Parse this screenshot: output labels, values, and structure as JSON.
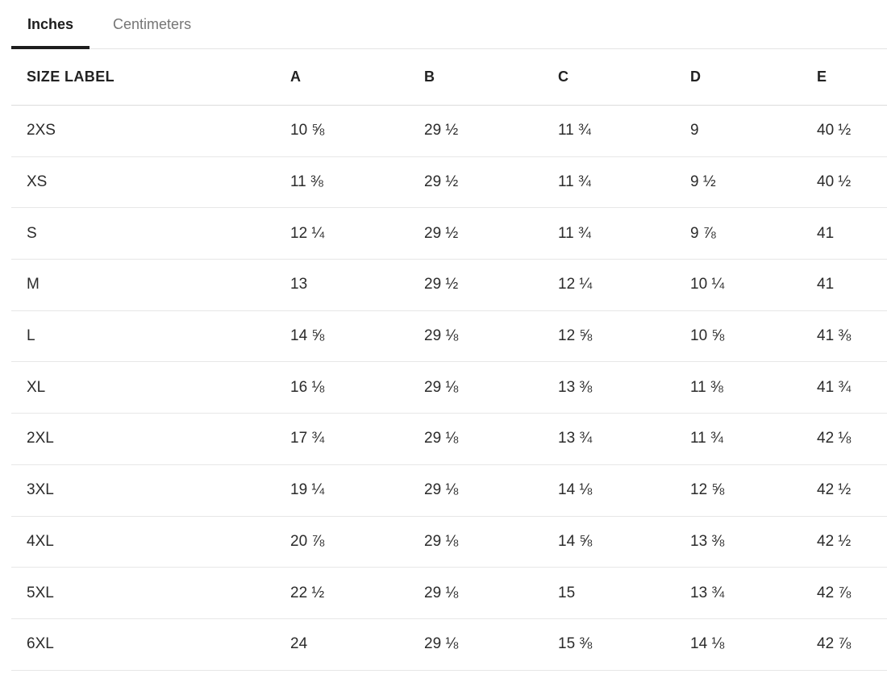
{
  "unit_tabs": [
    {
      "label": "Inches",
      "active": true
    },
    {
      "label": "Centimeters",
      "active": false
    }
  ],
  "size_chart": {
    "unit": "Inches",
    "columns": [
      "SIZE LABEL",
      "A",
      "B",
      "C",
      "D",
      "E"
    ],
    "rows": [
      {
        "size": "2XS",
        "values": [
          "10 ⅝",
          "29 ½",
          "11 ¾",
          "9",
          "40 ½"
        ]
      },
      {
        "size": "XS",
        "values": [
          "11 ⅜",
          "29 ½",
          "11 ¾",
          "9 ½",
          "40 ½"
        ]
      },
      {
        "size": "S",
        "values": [
          "12 ¼",
          "29 ½",
          "11 ¾",
          "9 ⅞",
          "41"
        ]
      },
      {
        "size": "M",
        "values": [
          "13",
          "29 ½",
          "12 ¼",
          "10 ¼",
          "41"
        ]
      },
      {
        "size": "L",
        "values": [
          "14 ⅝",
          "29 ⅛",
          "12 ⅝",
          "10 ⅝",
          "41 ⅜"
        ]
      },
      {
        "size": "XL",
        "values": [
          "16 ⅛",
          "29 ⅛",
          "13 ⅜",
          "11 ⅜",
          "41 ¾"
        ]
      },
      {
        "size": "2XL",
        "values": [
          "17 ¾",
          "29 ⅛",
          "13 ¾",
          "11 ¾",
          "42 ⅛"
        ]
      },
      {
        "size": "3XL",
        "values": [
          "19 ¼",
          "29 ⅛",
          "14 ⅛",
          "12 ⅝",
          "42 ½"
        ]
      },
      {
        "size": "4XL",
        "values": [
          "20 ⅞",
          "29 ⅛",
          "14 ⅝",
          "13 ⅜",
          "42 ½"
        ]
      },
      {
        "size": "5XL",
        "values": [
          "22 ½",
          "29 ⅛",
          "15",
          "13 ¾",
          "42 ⅞"
        ]
      },
      {
        "size": "6XL",
        "values": [
          "24",
          "29 ⅛",
          "15 ⅜",
          "14 ⅛",
          "42 ⅞"
        ]
      }
    ]
  },
  "colors": {
    "text_primary": "#2b2b2b",
    "text_inactive_tab": "#757575",
    "active_tab_underline": "#1d1d1d",
    "row_divider": "#e7e7e7"
  }
}
